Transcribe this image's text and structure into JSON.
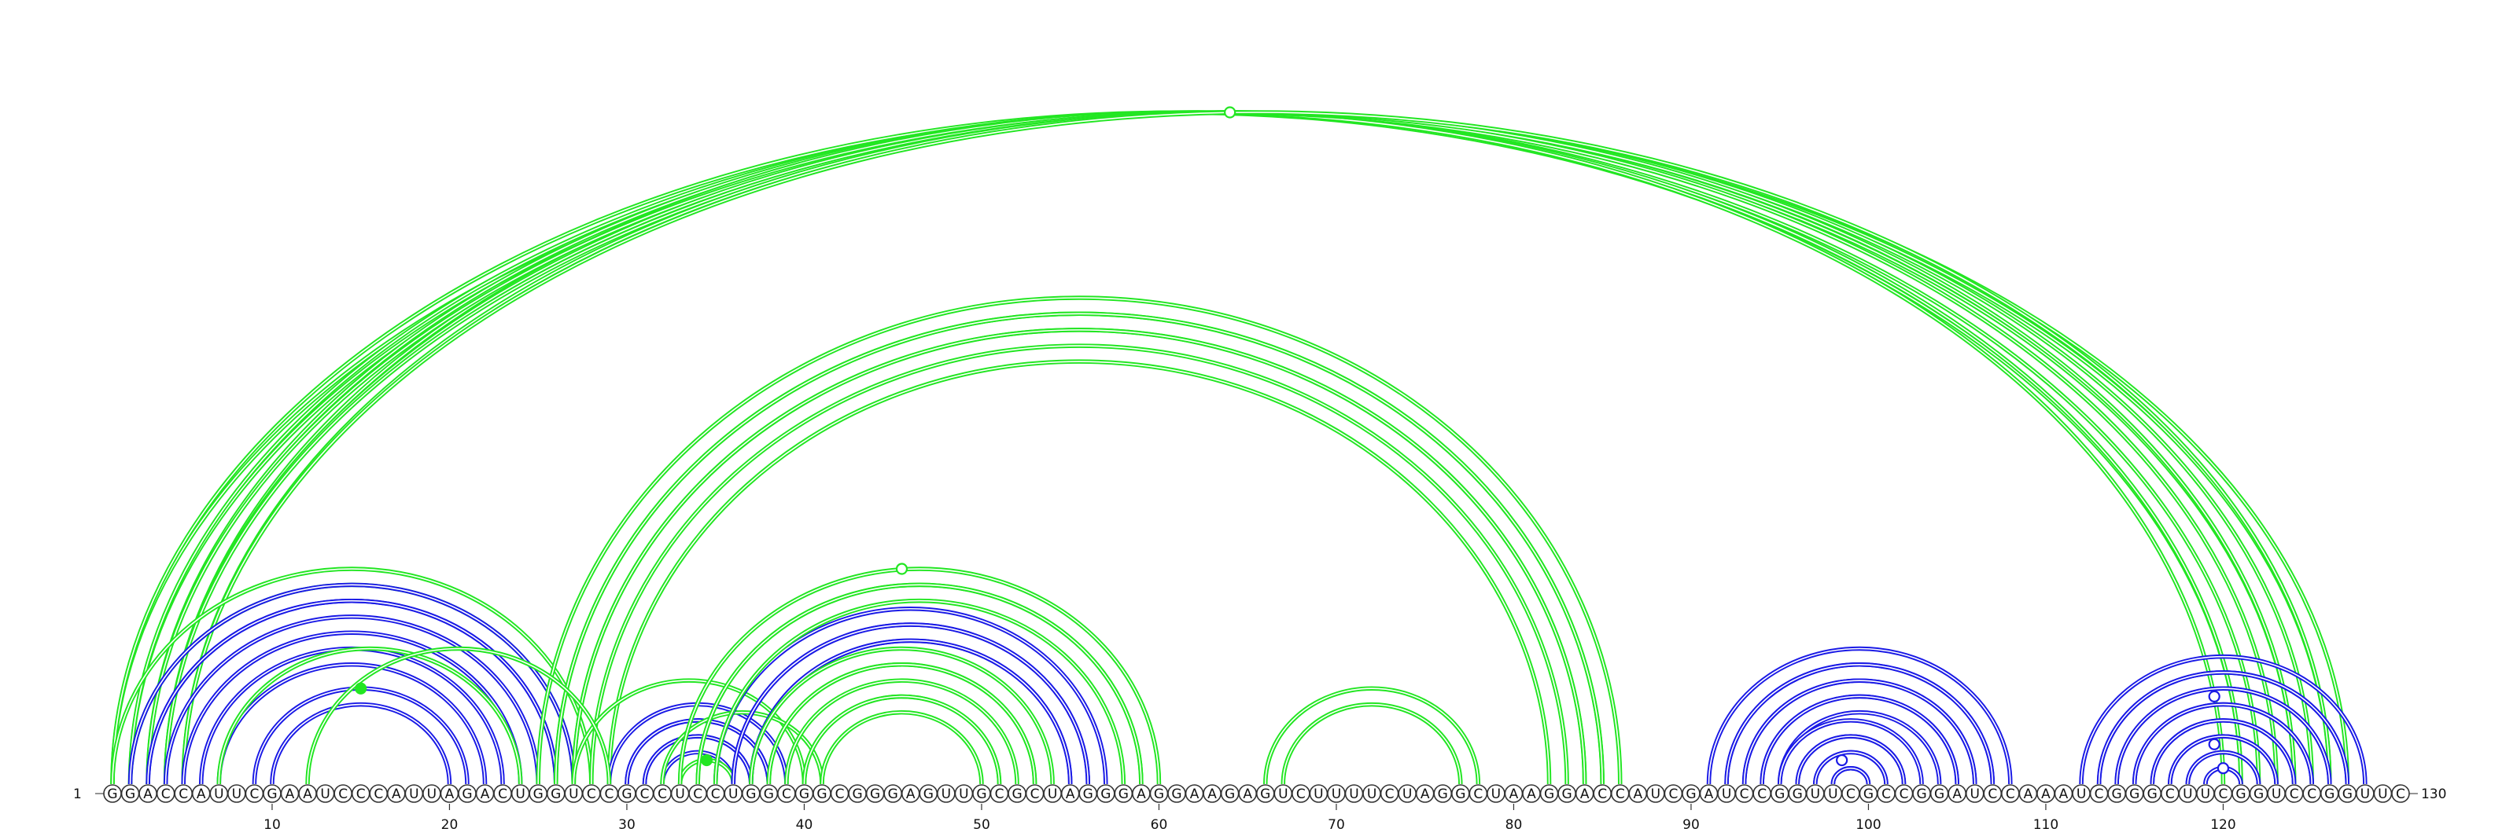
{
  "diagram": {
    "type": "rna-arc-diagram",
    "sequence": "GGACCAUUCGAAUCCCAUUAGACUGGUCCGCCUCCUGGCGGCGGGAGUUGCGCUAGGGAGGAAGAGUCUUUUCUAGGCUAAGGACCAUCGAUCCGGUUCGCCGGAUCCAAAUCGGGCUUCGGUCCGGUUC",
    "start_label": "1",
    "end_label": "130",
    "ticks": [
      "10",
      "20",
      "30",
      "40",
      "50",
      "60",
      "70",
      "80",
      "90",
      "100",
      "110",
      "120"
    ],
    "colors": {
      "green": "#22e622",
      "blue": "#1a1ae6"
    },
    "helices": [
      {
        "color": "green",
        "i": 1,
        "j": 127,
        "pairs": 2,
        "style": "double"
      },
      {
        "color": "green",
        "i": 1,
        "j": 121,
        "pairs": 1,
        "style": "double"
      },
      {
        "color": "green",
        "i": 2,
        "j": 122,
        "pairs": 3,
        "style": "double"
      },
      {
        "color": "green",
        "i": 3,
        "j": 124,
        "pairs": 2,
        "style": "double"
      },
      {
        "color": "green",
        "i": 4,
        "j": 125,
        "pairs": 2,
        "style": "double"
      },
      {
        "color": "green",
        "i": 5,
        "j": 126,
        "pairs": 1,
        "style": "double"
      },
      {
        "color": "green",
        "i": 1,
        "j": 28,
        "pairs": 2,
        "style": "double"
      },
      {
        "color": "blue",
        "i": 2,
        "j": 27,
        "pairs": 2,
        "style": "double"
      },
      {
        "color": "blue",
        "i": 3,
        "j": 26,
        "pairs": 2,
        "style": "double"
      },
      {
        "color": "blue",
        "i": 5,
        "j": 24,
        "pairs": 2,
        "style": "double"
      },
      {
        "color": "blue",
        "i": 7,
        "j": 22,
        "pairs": 1,
        "style": "double"
      },
      {
        "color": "green",
        "i": 7,
        "j": 24,
        "pairs": 1,
        "style": "double"
      },
      {
        "color": "blue",
        "i": 9,
        "j": 21,
        "pairs": 2,
        "style": "double"
      },
      {
        "color": "green",
        "i": 25,
        "j": 86,
        "pairs": 2,
        "style": "double"
      },
      {
        "color": "green",
        "i": 26,
        "j": 85,
        "pairs": 2,
        "style": "double"
      },
      {
        "color": "green",
        "i": 27,
        "j": 84,
        "pairs": 1,
        "style": "double"
      },
      {
        "color": "green",
        "i": 28,
        "j": 83,
        "pairs": 2,
        "style": "double"
      },
      {
        "color": "green",
        "i": 27,
        "j": 40,
        "pairs": 1,
        "style": "double"
      },
      {
        "color": "blue",
        "i": 29,
        "j": 39,
        "pairs": 2,
        "style": "double"
      },
      {
        "color": "blue",
        "i": 30,
        "j": 38,
        "pairs": 2,
        "style": "double"
      },
      {
        "color": "blue",
        "i": 31,
        "j": 37,
        "pairs": 2,
        "style": "double"
      },
      {
        "color": "green",
        "i": 32,
        "j": 41,
        "pairs": 1,
        "style": "double"
      },
      {
        "color": "green",
        "i": 33,
        "j": 36,
        "pairs": 1,
        "style": "double"
      },
      {
        "color": "blue",
        "i": 35,
        "j": 57,
        "pairs": 3,
        "style": "double"
      },
      {
        "color": "green",
        "i": 33,
        "j": 60,
        "pairs": 2,
        "style": "double"
      },
      {
        "color": "green",
        "i": 34,
        "j": 59,
        "pairs": 2,
        "style": "double"
      },
      {
        "color": "blue",
        "i": 36,
        "j": 56,
        "pairs": 2,
        "style": "double"
      },
      {
        "color": "green",
        "i": 37,
        "j": 54,
        "pairs": 2,
        "style": "double"
      },
      {
        "color": "green",
        "i": 38,
        "j": 53,
        "pairs": 1,
        "style": "double"
      },
      {
        "color": "green",
        "i": 39,
        "j": 52,
        "pairs": 2,
        "style": "double"
      },
      {
        "color": "green",
        "i": 40,
        "j": 51,
        "pairs": 2,
        "style": "double"
      },
      {
        "color": "green",
        "i": 66,
        "j": 78,
        "pairs": 2,
        "style": "double"
      },
      {
        "color": "blue",
        "i": 91,
        "j": 108,
        "pairs": 2,
        "style": "double"
      },
      {
        "color": "blue",
        "i": 92,
        "j": 107,
        "pairs": 2,
        "style": "double"
      },
      {
        "color": "blue",
        "i": 93,
        "j": 106,
        "pairs": 2,
        "style": "double"
      },
      {
        "color": "blue",
        "i": 94,
        "j": 105,
        "pairs": 2,
        "style": "double"
      },
      {
        "color": "blue",
        "i": 95,
        "j": 103,
        "pairs": 2,
        "style": "double"
      },
      {
        "color": "blue",
        "i": 96,
        "j": 102,
        "pairs": 2,
        "style": "double"
      },
      {
        "color": "blue",
        "i": 97,
        "j": 101,
        "pairs": 2,
        "style": "double"
      },
      {
        "color": "blue",
        "i": 98,
        "j": 100,
        "pairs": 1,
        "style": "double"
      },
      {
        "color": "blue",
        "i": 112,
        "j": 128,
        "pairs": 2,
        "style": "double"
      },
      {
        "color": "blue",
        "i": 113,
        "j": 127,
        "pairs": 2,
        "style": "double"
      },
      {
        "color": "blue",
        "i": 114,
        "j": 126,
        "pairs": 2,
        "style": "double"
      },
      {
        "color": "blue",
        "i": 115,
        "j": 125,
        "pairs": 2,
        "style": "double"
      },
      {
        "color": "blue",
        "i": 116,
        "j": 124,
        "pairs": 2,
        "style": "double"
      },
      {
        "color": "blue",
        "i": 117,
        "j": 123,
        "pairs": 2,
        "style": "double"
      },
      {
        "color": "blue",
        "i": 118,
        "j": 122,
        "pairs": 2,
        "style": "double"
      },
      {
        "color": "blue",
        "i": 119,
        "j": 121,
        "pairs": 1,
        "style": "double"
      },
      {
        "color": "green",
        "i": 12,
        "j": 29,
        "pairs": 1,
        "style": "double"
      }
    ],
    "markers": [
      {
        "color": "green",
        "at_i": 1,
        "at_j": 127,
        "filled": false
      },
      {
        "color": "green",
        "at_i": 9,
        "at_j": 21,
        "filled": true
      },
      {
        "color": "green",
        "at_i": 32,
        "at_j": 59,
        "filled": false
      },
      {
        "color": "green",
        "at_i": 33,
        "at_j": 36,
        "filled": true
      },
      {
        "color": "blue",
        "at_i": 97,
        "at_j": 100,
        "filled": false
      },
      {
        "color": "blue",
        "at_i": 114,
        "at_j": 125,
        "filled": false
      },
      {
        "color": "blue",
        "at_i": 117,
        "at_j": 122,
        "filled": false
      },
      {
        "color": "blue",
        "at_i": 119,
        "at_j": 121,
        "filled": false
      }
    ]
  }
}
